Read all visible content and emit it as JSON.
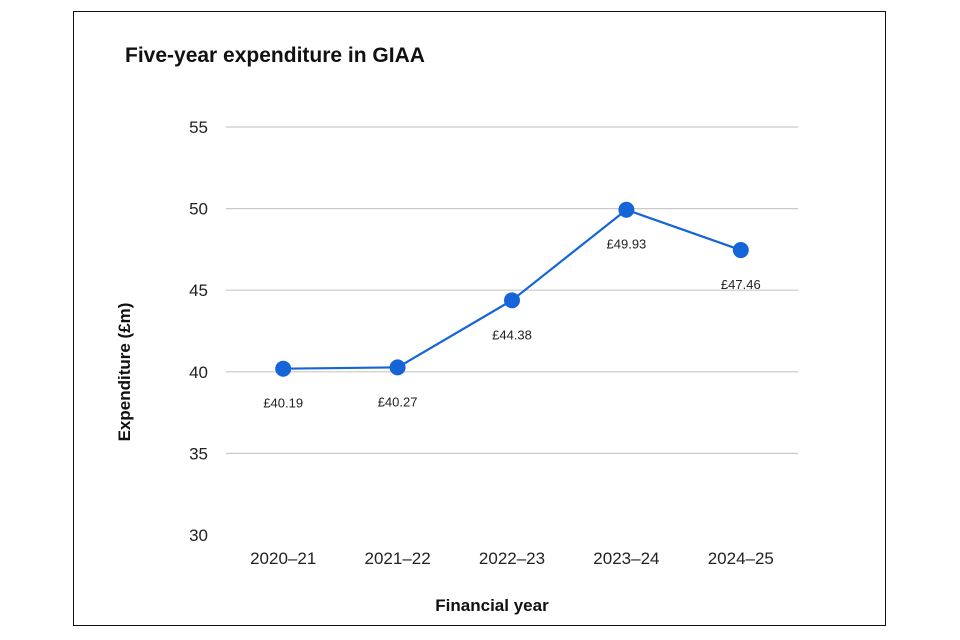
{
  "chart_data": {
    "type": "line",
    "title": "Five-year expenditure in GIAA",
    "xlabel": "Financial year",
    "ylabel": "Expenditure (£m)",
    "categories": [
      "2020–21",
      "2021–22",
      "2022–23",
      "2023–24",
      "2024–25"
    ],
    "series": [
      {
        "values": [
          40.19,
          40.27,
          44.38,
          49.93,
          47.46
        ],
        "labels": [
          "£40.19",
          "£40.27",
          "£44.38",
          "£49.93",
          "£47.46"
        ],
        "color": "#1565d8"
      }
    ],
    "ylim": [
      30,
      55
    ],
    "yticks": [
      "30",
      "35",
      "40",
      "45",
      "50",
      "55"
    ],
    "grid": true
  }
}
